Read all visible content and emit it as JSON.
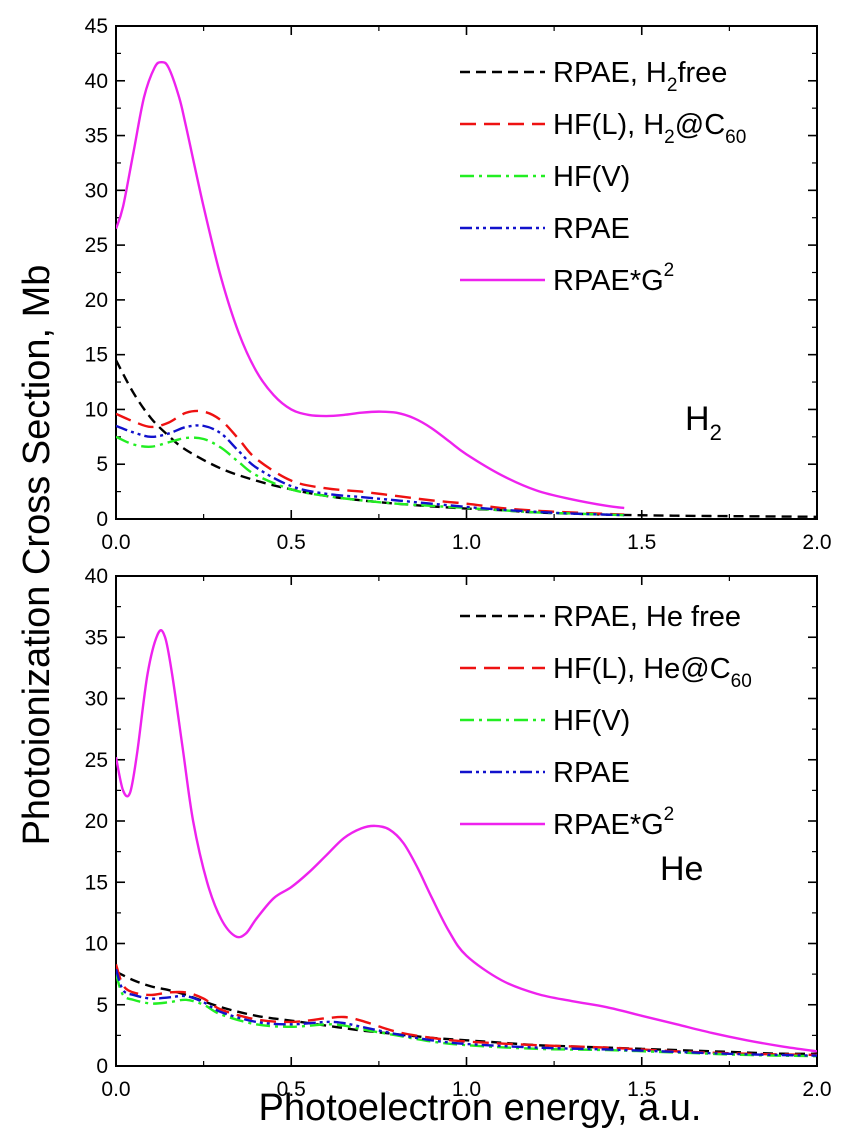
{
  "xlabel": "Photoelectron energy, a.u.",
  "ylabel": "Photoionization Cross Section, Mb",
  "colors": {
    "black": "#000000",
    "red": "#ee1111",
    "green": "#22ee22",
    "blue": "#1111cc",
    "magenta": "#ee22ee"
  },
  "chart_data": [
    {
      "type": "line",
      "panel_label": {
        "main": "H",
        "sub": "2"
      },
      "xlim": [
        0,
        2.0
      ],
      "ylim": [
        0,
        45
      ],
      "xticks": [
        "0.0",
        "0.5",
        "1.0",
        "1.5",
        "2.0"
      ],
      "yticks": [
        "0",
        "5",
        "10",
        "15",
        "20",
        "25",
        "30",
        "35",
        "40",
        "45"
      ],
      "legend_position": "top-right",
      "series": [
        {
          "name": "RPAE, H2 free",
          "label": {
            "pre": "RPAE, H",
            "sub": "2",
            "post": "free"
          },
          "color": "black",
          "style": "dash",
          "x": [
            0,
            0.05,
            0.1,
            0.15,
            0.2,
            0.3,
            0.4,
            0.5,
            0.6,
            0.7,
            0.8,
            0.9,
            1.0,
            1.1,
            1.2,
            1.4,
            1.6,
            1.8,
            2.0
          ],
          "y": [
            14.5,
            11.5,
            9.2,
            7.6,
            6.3,
            4.6,
            3.5,
            2.7,
            2.1,
            1.7,
            1.4,
            1.15,
            0.95,
            0.8,
            0.6,
            0.4,
            0.3,
            0.25,
            0.2
          ]
        },
        {
          "name": "HF(L), H2@C60",
          "label": {
            "pre": "HF(L), H",
            "sub": "2",
            "post": "@C",
            "sub2": "60"
          },
          "color": "red",
          "style": "longdash",
          "x": [
            0,
            0.05,
            0.1,
            0.15,
            0.2,
            0.25,
            0.3,
            0.35,
            0.4,
            0.5,
            0.6,
            0.7,
            0.8,
            0.9,
            1.0,
            1.1,
            1.2,
            1.3,
            1.45
          ],
          "y": [
            9.6,
            8.9,
            8.4,
            8.8,
            9.7,
            9.8,
            9.0,
            7.3,
            5.5,
            3.5,
            2.8,
            2.5,
            2.1,
            1.7,
            1.4,
            1.0,
            0.75,
            0.6,
            0.4
          ]
        },
        {
          "name": "HF(V)",
          "label": {
            "pre": "HF(V)"
          },
          "color": "green",
          "style": "dashdot",
          "x": [
            0,
            0.05,
            0.1,
            0.15,
            0.2,
            0.25,
            0.3,
            0.35,
            0.4,
            0.5,
            0.6,
            0.7,
            0.8,
            0.9,
            1.0,
            1.1,
            1.2,
            1.3,
            1.45
          ],
          "y": [
            7.5,
            6.8,
            6.6,
            7.0,
            7.4,
            7.3,
            6.5,
            5.2,
            4.0,
            2.7,
            2.1,
            1.7,
            1.4,
            1.2,
            1.0,
            0.8,
            0.6,
            0.5,
            0.35
          ]
        },
        {
          "name": "RPAE",
          "label": {
            "pre": "RPAE"
          },
          "color": "blue",
          "style": "dashdotdot",
          "x": [
            0,
            0.05,
            0.1,
            0.15,
            0.2,
            0.25,
            0.3,
            0.35,
            0.4,
            0.5,
            0.6,
            0.7,
            0.8,
            0.9,
            1.0,
            1.1,
            1.2,
            1.3,
            1.45
          ],
          "y": [
            8.5,
            7.9,
            7.5,
            7.8,
            8.4,
            8.5,
            7.8,
            6.2,
            4.7,
            3.0,
            2.3,
            2.0,
            1.7,
            1.4,
            1.1,
            0.85,
            0.65,
            0.5,
            0.35
          ]
        },
        {
          "name": "RPAE*G2",
          "label": {
            "pre": "RPAE*G",
            "sup": "2"
          },
          "color": "magenta",
          "style": "solid",
          "x": [
            0,
            0.02,
            0.05,
            0.08,
            0.11,
            0.13,
            0.15,
            0.18,
            0.2,
            0.25,
            0.3,
            0.35,
            0.4,
            0.45,
            0.5,
            0.55,
            0.6,
            0.65,
            0.7,
            0.75,
            0.8,
            0.85,
            0.9,
            0.95,
            1.0,
            1.1,
            1.2,
            1.3,
            1.4,
            1.45
          ],
          "y": [
            26.5,
            28.5,
            33.5,
            38.5,
            41.2,
            41.7,
            41.2,
            38.5,
            35.8,
            28.5,
            22.0,
            17.0,
            13.5,
            11.3,
            10.0,
            9.5,
            9.4,
            9.5,
            9.7,
            9.8,
            9.7,
            9.2,
            8.3,
            7.1,
            5.9,
            4.0,
            2.6,
            1.8,
            1.2,
            1.0
          ]
        }
      ]
    },
    {
      "type": "line",
      "panel_label": {
        "main": "He",
        "sub": ""
      },
      "xlim": [
        0,
        2.0
      ],
      "ylim": [
        0,
        40
      ],
      "xticks": [
        "0.0",
        "0.5",
        "1.0",
        "1.5",
        "2.0"
      ],
      "yticks": [
        "0",
        "5",
        "10",
        "15",
        "20",
        "25",
        "30",
        "35",
        "40"
      ],
      "legend_position": "top-right",
      "series": [
        {
          "name": "RPAE, He free",
          "label": {
            "pre": "RPAE, He free"
          },
          "color": "black",
          "style": "dash",
          "x": [
            0,
            0.05,
            0.1,
            0.15,
            0.2,
            0.3,
            0.4,
            0.5,
            0.6,
            0.7,
            0.8,
            0.9,
            1.0,
            1.1,
            1.2,
            1.3,
            1.4,
            1.5,
            1.6,
            1.7,
            1.8,
            1.9,
            2.0
          ],
          "y": [
            7.7,
            7.0,
            6.5,
            6.2,
            5.8,
            4.8,
            4.1,
            3.7,
            3.3,
            2.9,
            2.6,
            2.3,
            2.1,
            1.9,
            1.7,
            1.6,
            1.5,
            1.4,
            1.3,
            1.2,
            1.1,
            1.0,
            1.0
          ]
        },
        {
          "name": "HF(L), He@C60",
          "label": {
            "pre": "HF(L), He@C",
            "sub2": "60"
          },
          "color": "red",
          "style": "longdash",
          "x": [
            0,
            0.02,
            0.05,
            0.1,
            0.15,
            0.2,
            0.25,
            0.3,
            0.4,
            0.5,
            0.6,
            0.65,
            0.7,
            0.8,
            0.9,
            1.0,
            1.2,
            1.4,
            1.6,
            1.8,
            2.0
          ],
          "y": [
            8.3,
            6.6,
            6.0,
            5.8,
            6.0,
            6.0,
            5.5,
            4.6,
            3.8,
            3.6,
            3.9,
            4.0,
            3.7,
            2.8,
            2.3,
            2.0,
            1.7,
            1.5,
            1.2,
            1.0,
            0.9
          ]
        },
        {
          "name": "HF(V)",
          "label": {
            "pre": "HF(V)"
          },
          "color": "green",
          "style": "dashdot",
          "x": [
            0,
            0.02,
            0.05,
            0.1,
            0.15,
            0.2,
            0.25,
            0.3,
            0.4,
            0.5,
            0.6,
            0.65,
            0.7,
            0.8,
            0.9,
            1.0,
            1.2,
            1.4,
            1.6,
            1.8,
            2.0
          ],
          "y": [
            7.5,
            5.8,
            5.4,
            5.1,
            5.2,
            5.4,
            5.0,
            4.2,
            3.4,
            3.2,
            3.4,
            3.3,
            3.0,
            2.5,
            2.0,
            1.7,
            1.4,
            1.3,
            1.1,
            0.9,
            0.8
          ]
        },
        {
          "name": "RPAE",
          "label": {
            "pre": "RPAE"
          },
          "color": "blue",
          "style": "dashdotdot",
          "x": [
            0,
            0.02,
            0.05,
            0.1,
            0.15,
            0.2,
            0.25,
            0.3,
            0.4,
            0.5,
            0.6,
            0.65,
            0.7,
            0.8,
            0.9,
            1.0,
            1.2,
            1.4,
            1.6,
            1.8,
            2.0
          ],
          "y": [
            7.9,
            6.2,
            5.8,
            5.5,
            5.6,
            5.7,
            5.2,
            4.4,
            3.6,
            3.4,
            3.6,
            3.5,
            3.2,
            2.6,
            2.1,
            1.8,
            1.5,
            1.35,
            1.15,
            0.95,
            0.85
          ]
        },
        {
          "name": "RPAE*G2",
          "label": {
            "pre": "RPAE*G",
            "sup": "2"
          },
          "color": "magenta",
          "style": "solid",
          "x": [
            0,
            0.02,
            0.04,
            0.06,
            0.09,
            0.12,
            0.14,
            0.16,
            0.19,
            0.22,
            0.26,
            0.3,
            0.34,
            0.37,
            0.4,
            0.45,
            0.5,
            0.55,
            0.6,
            0.65,
            0.7,
            0.74,
            0.78,
            0.82,
            0.86,
            0.9,
            0.95,
            1.0,
            1.1,
            1.2,
            1.3,
            1.4,
            1.5,
            1.6,
            1.7,
            1.8,
            1.9,
            2.0
          ],
          "y": [
            25.2,
            22.5,
            22.3,
            25.5,
            32.0,
            35.3,
            35.0,
            32.0,
            26.0,
            20.0,
            15.0,
            12.0,
            10.6,
            10.8,
            12.0,
            13.7,
            14.6,
            15.8,
            17.2,
            18.6,
            19.4,
            19.6,
            19.3,
            18.2,
            16.2,
            13.8,
            11.0,
            9.0,
            7.0,
            5.9,
            5.3,
            4.8,
            4.1,
            3.4,
            2.7,
            2.1,
            1.6,
            1.2
          ]
        }
      ]
    }
  ]
}
